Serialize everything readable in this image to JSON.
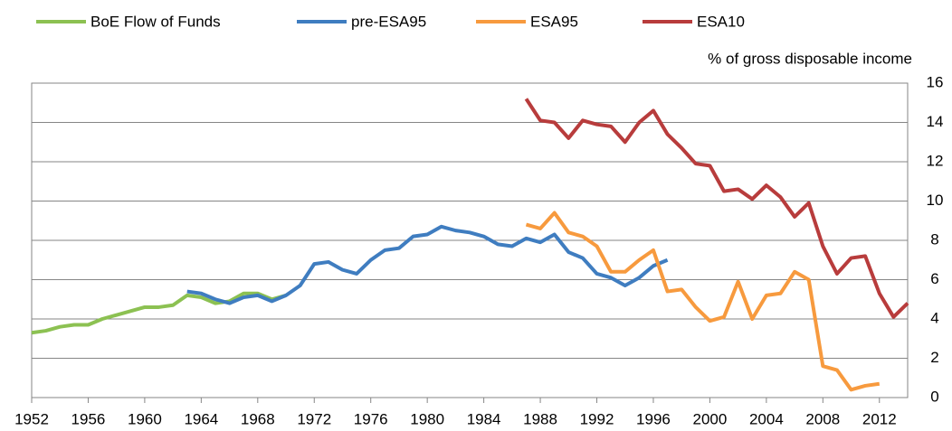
{
  "chart_data": {
    "type": "line",
    "y_axis_label": "% of gross disposable income",
    "xlim": [
      1952,
      2014
    ],
    "xticks": [
      1952,
      1956,
      1960,
      1964,
      1968,
      1972,
      1976,
      1980,
      1984,
      1988,
      1992,
      1996,
      2000,
      2004,
      2008,
      2012
    ],
    "ylim": [
      0,
      16
    ],
    "yticks": [
      0,
      2,
      4,
      6,
      8,
      10,
      12,
      14,
      16
    ],
    "grid": true,
    "y_axis_side": "right",
    "legend_position": "top",
    "series": [
      {
        "name": "BoE Flow of Funds",
        "color": "#8cc152",
        "x": [
          1952,
          1953,
          1954,
          1955,
          1956,
          1957,
          1958,
          1959,
          1960,
          1961,
          1962,
          1963,
          1964,
          1965,
          1966,
          1967,
          1968,
          1969,
          1970
        ],
        "values": [
          3.3,
          3.4,
          3.6,
          3.7,
          3.7,
          4.0,
          4.2,
          4.4,
          4.6,
          4.6,
          4.7,
          5.2,
          5.1,
          4.8,
          4.9,
          5.3,
          5.3,
          5.0,
          5.2
        ]
      },
      {
        "name": "pre-ESA95",
        "color": "#3f7dc0",
        "x": [
          1963,
          1964,
          1965,
          1966,
          1967,
          1968,
          1969,
          1970,
          1971,
          1972,
          1973,
          1974,
          1975,
          1976,
          1977,
          1978,
          1979,
          1980,
          1981,
          1982,
          1983,
          1984,
          1985,
          1986,
          1987,
          1988,
          1989,
          1990,
          1991,
          1992,
          1993,
          1994,
          1995,
          1996,
          1997
        ],
        "values": [
          5.4,
          5.3,
          5.0,
          4.8,
          5.1,
          5.2,
          4.9,
          5.2,
          5.7,
          6.8,
          6.9,
          6.5,
          6.3,
          7.0,
          7.5,
          7.6,
          8.2,
          8.3,
          8.7,
          8.5,
          8.4,
          8.2,
          7.8,
          7.7,
          8.1,
          7.9,
          8.3,
          7.4,
          7.1,
          6.3,
          6.1,
          5.7,
          6.1,
          6.7,
          7.0
        ]
      },
      {
        "name": "ESA95",
        "color": "#f79a3e",
        "x": [
          1987,
          1988,
          1989,
          1990,
          1991,
          1992,
          1993,
          1994,
          1995,
          1996,
          1997,
          1998,
          1999,
          2000,
          2001,
          2002,
          2003,
          2004,
          2005,
          2006,
          2007,
          2008,
          2009,
          2010,
          2011,
          2012
        ],
        "values": [
          8.8,
          8.6,
          9.4,
          8.4,
          8.2,
          7.7,
          6.4,
          6.4,
          7.0,
          7.5,
          5.4,
          5.5,
          4.6,
          3.9,
          4.1,
          5.9,
          4.0,
          5.2,
          5.3,
          6.4,
          6.0,
          1.6,
          1.4,
          0.4,
          0.6,
          0.7
        ]
      },
      {
        "name": "ESA10",
        "color": "#b83c3c",
        "x": [
          1987,
          1988,
          1989,
          1990,
          1991,
          1992,
          1993,
          1994,
          1995,
          1996,
          1997,
          1998,
          1999,
          2000,
          2001,
          2002,
          2003,
          2004,
          2005,
          2006,
          2007,
          2008,
          2009,
          2010,
          2011,
          2012,
          2013,
          2014
        ],
        "values": [
          15.2,
          14.1,
          14.0,
          13.2,
          14.1,
          13.9,
          13.8,
          13.0,
          14.0,
          14.6,
          13.4,
          12.7,
          11.9,
          11.8,
          10.5,
          10.6,
          10.1,
          10.8,
          10.2,
          9.2,
          9.9,
          7.7,
          6.3,
          7.1,
          7.2,
          5.3,
          4.1,
          4.8
        ]
      }
    ]
  }
}
